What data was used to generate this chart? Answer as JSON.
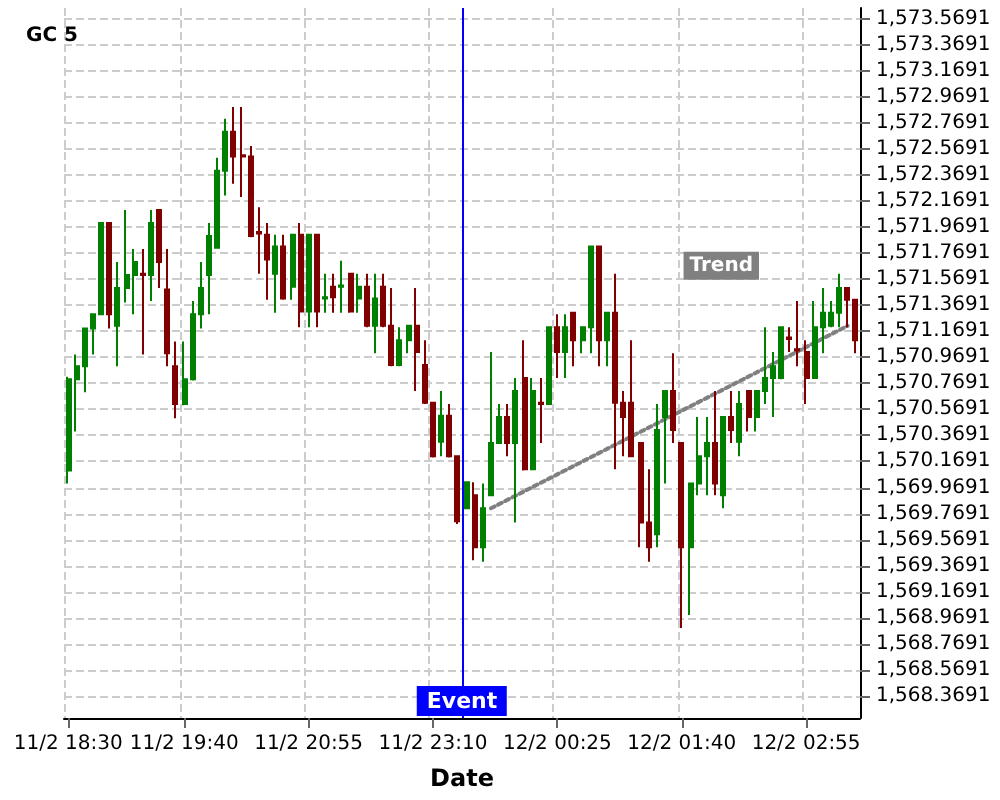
{
  "chart_data": {
    "type": "candlestick",
    "title": "GC 5",
    "xlabel": "Date",
    "categories": [
      "11/2 18:30",
      null,
      null,
      null,
      null,
      null,
      null,
      null,
      null,
      null,
      null,
      null,
      null,
      null,
      "11/2 19:40",
      null,
      null,
      null,
      null,
      null,
      null,
      null,
      null,
      null,
      null,
      null,
      null,
      null,
      null,
      "11/2 20:55",
      null,
      null,
      null,
      null,
      null,
      null,
      null,
      null,
      null,
      null,
      null,
      null,
      null,
      null,
      "11/2 23:10",
      null,
      null,
      null,
      null,
      null,
      null,
      null,
      null,
      null,
      null,
      null,
      null,
      null,
      null,
      "12/2 00:25",
      null,
      null,
      null,
      null,
      null,
      null,
      null,
      null,
      null,
      null,
      null,
      null,
      null,
      null,
      "12/2 01:40",
      null,
      null,
      null,
      null,
      null,
      null,
      null,
      null,
      null,
      null,
      null,
      null,
      null,
      null,
      "12/2 02:55",
      null,
      null,
      null,
      null,
      null,
      null
    ],
    "series": [
      {
        "type": "candlestick",
        "ohlc": [
          [
            1570.1,
            1570.82,
            1570.0,
            1570.8
          ],
          [
            1570.8,
            1570.99,
            1570.4,
            1570.9
          ],
          [
            1570.9,
            1571.19,
            1570.7,
            1571.19
          ],
          [
            1571.19,
            1571.3,
            1570.99,
            1571.3
          ],
          [
            1571.3,
            1572.0,
            1571.3,
            1572.0
          ],
          [
            1572.0,
            1572.0,
            1571.19,
            1571.3
          ],
          [
            1571.21,
            1571.7,
            1570.9,
            1571.5
          ],
          [
            1571.5,
            1572.1,
            1571.39,
            1571.6
          ],
          [
            1571.6,
            1571.8,
            1571.3,
            1571.7
          ],
          [
            1571.61,
            1571.8,
            1570.99,
            1571.6
          ],
          [
            1571.6,
            1572.1,
            1571.4,
            1572.0
          ],
          [
            1572.1,
            1572.1,
            1571.5,
            1571.7
          ],
          [
            1571.49,
            1571.8,
            1570.9,
            1571.0
          ],
          [
            1570.9,
            1571.09,
            1570.5,
            1570.61
          ],
          [
            1570.61,
            1571.09,
            1570.6,
            1570.8
          ],
          [
            1570.8,
            1571.4,
            1570.79,
            1571.3
          ],
          [
            1571.3,
            1571.7,
            1571.19,
            1571.5
          ],
          [
            1571.6,
            1572.0,
            1571.3,
            1571.9
          ],
          [
            1571.81,
            1572.5,
            1571.81,
            1572.4
          ],
          [
            1572.4,
            1572.8,
            1572.21,
            1572.7
          ],
          [
            1572.7,
            1572.89,
            1572.3,
            1572.51
          ],
          [
            1572.52,
            1572.89,
            1572.2,
            1572.51
          ],
          [
            1572.51,
            1572.59,
            1571.89,
            1571.9
          ],
          [
            1571.93,
            1572.12,
            1571.61,
            1571.92
          ],
          [
            1571.91,
            1572.0,
            1571.41,
            1571.72
          ],
          [
            1571.61,
            1571.91,
            1571.31,
            1571.82
          ],
          [
            1571.82,
            1571.91,
            1571.41,
            1571.42
          ],
          [
            1571.51,
            1571.91,
            1571.41,
            1571.91
          ],
          [
            1571.91,
            1572.0,
            1571.2,
            1571.32
          ],
          [
            1571.32,
            1571.91,
            1571.2,
            1571.91
          ],
          [
            1571.91,
            1571.91,
            1571.2,
            1571.32
          ],
          [
            1571.42,
            1571.61,
            1571.31,
            1571.43
          ],
          [
            1571.51,
            1571.61,
            1571.31,
            1571.43
          ],
          [
            1571.51,
            1571.71,
            1571.31,
            1571.52
          ],
          [
            1571.61,
            1571.61,
            1571.31,
            1571.32
          ],
          [
            1571.42,
            1571.61,
            1571.31,
            1571.51
          ],
          [
            1571.51,
            1571.61,
            1571.2,
            1571.21
          ],
          [
            1571.21,
            1571.61,
            1571.0,
            1571.42
          ],
          [
            1571.51,
            1571.61,
            1571.2,
            1571.21
          ],
          [
            1571.21,
            1571.5,
            1570.9,
            1570.91
          ],
          [
            1570.91,
            1571.2,
            1570.9,
            1571.1
          ],
          [
            1571.1,
            1571.21,
            1571.0,
            1571.21
          ],
          [
            1571.21,
            1571.5,
            1570.71,
            1571.01
          ],
          [
            1570.91,
            1571.1,
            1570.61,
            1570.62
          ],
          [
            1570.62,
            1570.62,
            1570.2,
            1570.21
          ],
          [
            1570.32,
            1570.71,
            1570.21,
            1570.52
          ],
          [
            1570.52,
            1570.61,
            1570.2,
            1570.21
          ],
          [
            1570.21,
            1570.21,
            1569.69,
            1569.71
          ],
          [
            1569.81,
            1570.01,
            1569.81,
            1570.01
          ],
          [
            1569.91,
            1570.01,
            1569.41,
            1569.51
          ],
          [
            1569.51,
            1570.0,
            1569.4,
            1569.81
          ],
          [
            1569.91,
            1571.01,
            1569.91,
            1570.31
          ],
          [
            1570.31,
            1570.61,
            1570.31,
            1570.51
          ],
          [
            1570.51,
            1570.61,
            1570.21,
            1570.31
          ],
          [
            1570.31,
            1570.81,
            1569.7,
            1570.71
          ],
          [
            1570.81,
            1571.1,
            1570.1,
            1570.11
          ],
          [
            1570.11,
            1570.81,
            1570.11,
            1570.71
          ],
          [
            1570.62,
            1570.81,
            1570.31,
            1570.61
          ],
          [
            1570.61,
            1571.2,
            1570.61,
            1571.2
          ],
          [
            1571.2,
            1571.3,
            1570.81,
            1571.01
          ],
          [
            1571.01,
            1571.3,
            1570.81,
            1571.2
          ],
          [
            1571.31,
            1571.31,
            1570.9,
            1571.1
          ],
          [
            1571.1,
            1571.2,
            1571.0,
            1571.2
          ],
          [
            1571.2,
            1571.82,
            1571.0,
            1571.82
          ],
          [
            1571.82,
            1571.82,
            1570.9,
            1571.1
          ],
          [
            1571.1,
            1571.31,
            1570.9,
            1571.31
          ],
          [
            1571.31,
            1571.61,
            1570.11,
            1570.62
          ],
          [
            1570.62,
            1570.71,
            1570.21,
            1570.51
          ],
          [
            1570.62,
            1571.1,
            1570.21,
            1570.21
          ],
          [
            1570.31,
            1570.31,
            1569.51,
            1569.7
          ],
          [
            1569.7,
            1570.11,
            1569.4,
            1569.51
          ],
          [
            1569.61,
            1570.61,
            1569.51,
            1570.41
          ],
          [
            1570.51,
            1570.71,
            1570.0,
            1570.71
          ],
          [
            1570.71,
            1571.0,
            1570.31,
            1570.41
          ],
          [
            1570.31,
            1570.31,
            1568.89,
            1569.51
          ],
          [
            1569.51,
            1570.0,
            1568.99,
            1570.0
          ],
          [
            1570.0,
            1570.51,
            1569.91,
            1570.21
          ],
          [
            1570.21,
            1570.51,
            1569.91,
            1570.31
          ],
          [
            1570.31,
            1570.71,
            1569.91,
            1570.0
          ],
          [
            1569.91,
            1570.51,
            1569.81,
            1570.51
          ],
          [
            1570.51,
            1570.71,
            1570.31,
            1570.41
          ],
          [
            1570.32,
            1570.71,
            1570.21,
            1570.61
          ],
          [
            1570.71,
            1570.71,
            1570.4,
            1570.51
          ],
          [
            1570.51,
            1570.71,
            1570.4,
            1570.71
          ],
          [
            1570.71,
            1571.2,
            1570.61,
            1570.81
          ],
          [
            1570.81,
            1571.01,
            1570.51,
            1570.9
          ],
          [
            1570.81,
            1571.2,
            1570.8,
            1571.2
          ],
          [
            1571.12,
            1571.2,
            1571.01,
            1571.11
          ],
          [
            1571.03,
            1571.4,
            1570.9,
            1571.02
          ],
          [
            1571.01,
            1571.1,
            1570.61,
            1570.81
          ],
          [
            1570.81,
            1571.4,
            1570.81,
            1571.2
          ],
          [
            1571.2,
            1571.5,
            1571.0,
            1571.31
          ],
          [
            1571.21,
            1571.4,
            1571.2,
            1571.31
          ],
          [
            1571.31,
            1571.61,
            1571.2,
            1571.5
          ],
          [
            1571.5,
            1571.5,
            1571.2,
            1571.41
          ],
          [
            1571.41,
            1571.41,
            1571.0,
            1571.1
          ]
        ],
        "colors": [
          "#008000",
          "#008000",
          "#008000",
          "#008000",
          "#008000",
          "#800000",
          "#008000",
          "#008000",
          "#008000",
          "#800000",
          "#008000",
          "#800000",
          "#800000",
          "#800000",
          "#008000",
          "#008000",
          "#008000",
          "#008000",
          "#008000",
          "#008000",
          "#800000",
          "#800000",
          "#800000",
          "#800000",
          "#800000",
          "#008000",
          "#800000",
          "#008000",
          "#800000",
          "#008000",
          "#800000",
          "#008000",
          "#800000",
          "#008000",
          "#800000",
          "#008000",
          "#800000",
          "#008000",
          "#800000",
          "#800000",
          "#008000",
          "#008000",
          "#800000",
          "#800000",
          "#800000",
          "#008000",
          "#800000",
          "#800000",
          "#008000",
          "#800000",
          "#008000",
          "#008000",
          "#008000",
          "#800000",
          "#008000",
          "#800000",
          "#008000",
          "#800000",
          "#008000",
          "#800000",
          "#008000",
          "#800000",
          "#008000",
          "#008000",
          "#800000",
          "#008000",
          "#800000",
          "#800000",
          "#800000",
          "#800000",
          "#800000",
          "#008000",
          "#008000",
          "#800000",
          "#800000",
          "#008000",
          "#008000",
          "#008000",
          "#800000",
          "#008000",
          "#800000",
          "#008000",
          "#800000",
          "#008000",
          "#008000",
          "#008000",
          "#008000",
          "#800000",
          "#800000",
          "#800000",
          "#008000",
          "#008000",
          "#008000",
          "#008000",
          "#800000",
          "#800000"
        ]
      },
      {
        "type": "line",
        "name": "Trend",
        "color": "#808080",
        "line_style": "dotted",
        "values": [
          null,
          null,
          null,
          null,
          null,
          null,
          null,
          null,
          null,
          null,
          null,
          null,
          null,
          null,
          null,
          null,
          null,
          null,
          null,
          null,
          null,
          null,
          null,
          null,
          null,
          null,
          null,
          null,
          null,
          null,
          null,
          null,
          null,
          null,
          null,
          null,
          null,
          null,
          null,
          null,
          null,
          null,
          null,
          null,
          null,
          null,
          null,
          null,
          null,
          null,
          null,
          1569.81,
          null,
          null,
          null,
          null,
          null,
          null,
          null,
          null,
          null,
          null,
          null,
          null,
          null,
          null,
          null,
          null,
          null,
          null,
          null,
          null,
          null,
          null,
          null,
          null,
          null,
          null,
          null,
          null,
          null,
          null,
          null,
          null,
          null,
          null,
          null,
          null,
          null,
          null,
          null,
          null,
          null,
          null,
          1571.21,
          null
        ]
      }
    ],
    "ylim": [
      1568.2,
      1573.65
    ],
    "yticks": [
      {
        "value": 1568.3691,
        "label": "1,568.3691"
      },
      {
        "value": 1568.5691,
        "label": "1,568.5691"
      },
      {
        "value": 1568.7691,
        "label": "1,568.7691"
      },
      {
        "value": 1568.9691,
        "label": "1,568.9691"
      },
      {
        "value": 1569.1691,
        "label": "1,569.1691"
      },
      {
        "value": 1569.3691,
        "label": "1,569.3691"
      },
      {
        "value": 1569.5691,
        "label": "1,569.5691"
      },
      {
        "value": 1569.7691,
        "label": "1,569.7691"
      },
      {
        "value": 1569.9691,
        "label": "1,569.9691"
      },
      {
        "value": 1570.1691,
        "label": "1,570.1691"
      },
      {
        "value": 1570.3691,
        "label": "1,570.3691"
      },
      {
        "value": 1570.5691,
        "label": "1,570.5691"
      },
      {
        "value": 1570.7691,
        "label": "1,570.7691"
      },
      {
        "value": 1570.9691,
        "label": "1,570.9691"
      },
      {
        "value": 1571.1691,
        "label": "1,571.1691"
      },
      {
        "value": 1571.3691,
        "label": "1,571.3691"
      },
      {
        "value": 1571.5691,
        "label": "1,571.5691"
      },
      {
        "value": 1571.7691,
        "label": "1,571.7691"
      },
      {
        "value": 1571.9691,
        "label": "1,571.9691"
      },
      {
        "value": 1572.1691,
        "label": "1,572.1691"
      },
      {
        "value": 1572.3691,
        "label": "1,572.3691"
      },
      {
        "value": 1572.5691,
        "label": "1,572.5691"
      },
      {
        "value": 1572.7691,
        "label": "1,572.7691"
      },
      {
        "value": 1572.9691,
        "label": "1,572.9691"
      },
      {
        "value": 1573.1691,
        "label": "1,573.1691"
      },
      {
        "value": 1573.3691,
        "label": "1,573.3691"
      },
      {
        "value": 1573.5691,
        "label": "1,573.5691"
      }
    ],
    "annotations": [
      "Event"
    ],
    "grid": true
  }
}
